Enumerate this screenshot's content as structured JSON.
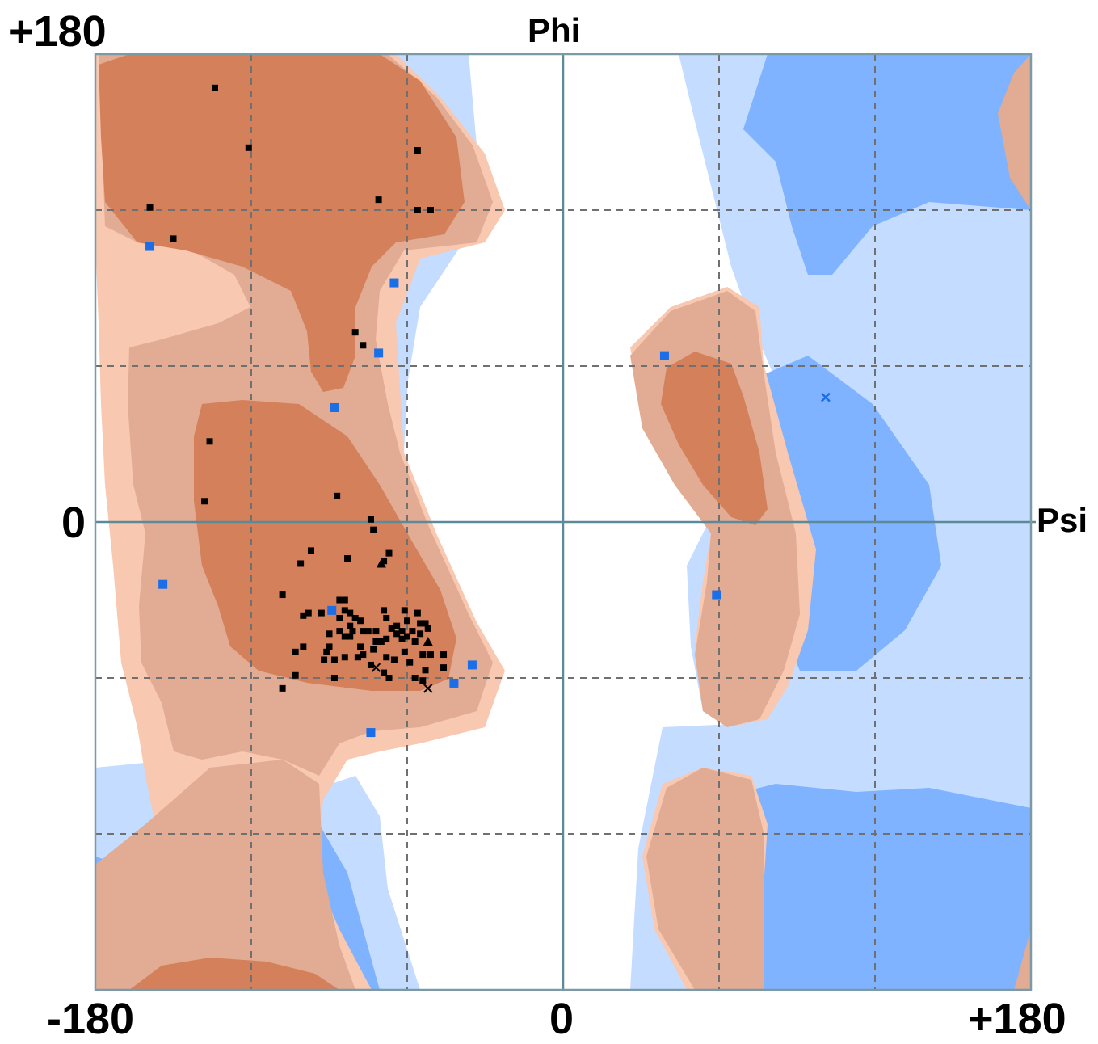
{
  "chart_data": {
    "type": "scatter",
    "title": "",
    "x_axis_name": "Phi",
    "y_axis_name": "Psi",
    "xlim": [
      -180,
      180
    ],
    "ylim": [
      -180,
      180
    ],
    "x_ticks": [
      -180,
      0,
      180
    ],
    "y_ticks": [
      -180,
      0,
      180
    ],
    "tick_labels": {
      "top_left": "+180",
      "left_mid": "0",
      "bottom_left": "-180",
      "bottom_mid": "0",
      "bottom_right": "+180"
    },
    "grid": true,
    "grid_step": 60,
    "colors": {
      "favoured_dark": "#d4805a",
      "allowed_mid": "#e2ab94",
      "allowed_light": "#f8c8b0",
      "glycine_dark": "#7fb2ff",
      "glycine_light": "#c4dcff",
      "marker_general": "#000000",
      "marker_glycine": "#1a6ee8"
    },
    "series": [
      {
        "marker": "square",
        "color": "#000000",
        "points": [
          [
            -134,
            167
          ],
          [
            -121,
            144
          ],
          [
            -56,
            143
          ],
          [
            -71,
            124
          ],
          [
            -51,
            120
          ],
          [
            -159,
            121
          ],
          [
            -150,
            109
          ],
          [
            -56,
            120
          ],
          [
            -80,
            73
          ],
          [
            -77,
            68
          ],
          [
            -136,
            31
          ],
          [
            -138,
            8
          ],
          [
            -87,
            10
          ],
          [
            -74,
            1
          ],
          [
            -73,
            -3
          ],
          [
            -67,
            -12
          ],
          [
            -69,
            -15
          ],
          [
            -83,
            -14
          ],
          [
            -97,
            -11
          ],
          [
            -101,
            -16
          ],
          [
            -108,
            -28
          ],
          [
            -93,
            -35
          ],
          [
            -86,
            -37
          ],
          [
            -84,
            -34
          ],
          [
            -82,
            -35
          ],
          [
            -80,
            -37
          ],
          [
            -78,
            -38
          ],
          [
            -82,
            -40
          ],
          [
            -81,
            -42
          ],
          [
            -77,
            -42
          ],
          [
            -75,
            -42
          ],
          [
            -72,
            -42
          ],
          [
            -69,
            -34
          ],
          [
            -68,
            -37
          ],
          [
            -61,
            -34
          ],
          [
            -56,
            -35
          ],
          [
            -60,
            -38
          ],
          [
            -64,
            -40
          ],
          [
            -66,
            -41
          ],
          [
            -62,
            -42
          ],
          [
            -58,
            -42
          ],
          [
            -55,
            -39
          ],
          [
            -53,
            -39
          ],
          [
            -52,
            -41
          ],
          [
            -55,
            -43
          ],
          [
            -60,
            -44
          ],
          [
            -64,
            -43
          ],
          [
            -62,
            -45
          ],
          [
            -57,
            -46
          ],
          [
            -86,
            -42
          ],
          [
            -84,
            -44
          ],
          [
            -82,
            -44
          ],
          [
            -90,
            -43
          ],
          [
            -100,
            -48
          ],
          [
            -98,
            -35
          ],
          [
            -86,
            -30
          ],
          [
            -84,
            -30
          ],
          [
            -78,
            -48
          ],
          [
            -72,
            -46
          ],
          [
            -70,
            -46
          ],
          [
            -68,
            -45
          ],
          [
            -73,
            -49
          ],
          [
            -88,
            -53
          ],
          [
            -91,
            -50
          ],
          [
            -84,
            -52
          ],
          [
            -79,
            -52
          ],
          [
            -77,
            -51
          ],
          [
            -74,
            -55
          ],
          [
            -69,
            -58
          ],
          [
            -68,
            -52
          ],
          [
            -65,
            -53
          ],
          [
            -61,
            -50
          ],
          [
            -59,
            -54
          ],
          [
            -54,
            -51
          ],
          [
            -51,
            -51
          ],
          [
            -46,
            -51
          ],
          [
            -46,
            -56
          ],
          [
            -53,
            -57
          ],
          [
            -67,
            -60
          ],
          [
            -88,
            -60
          ],
          [
            -92,
            -53
          ],
          [
            -90,
            -48
          ],
          [
            -103,
            -50
          ],
          [
            -103,
            -59
          ],
          [
            -108,
            -64
          ],
          [
            -54,
            -61
          ],
          [
            -57,
            -60
          ],
          [
            -100,
            -36
          ]
        ]
      },
      {
        "marker": "triangle",
        "color": "#000000",
        "points": [
          [
            -70,
            -16
          ],
          [
            -52,
            -46
          ]
        ]
      },
      {
        "marker": "cross",
        "color": "#000000",
        "points": [
          [
            -72,
            -56
          ],
          [
            -52,
            -64
          ]
        ]
      },
      {
        "marker": "square",
        "color": "#1a6ee8",
        "points": [
          [
            -159,
            106
          ],
          [
            -65,
            92
          ],
          [
            -71,
            65
          ],
          [
            -88,
            44
          ],
          [
            -154,
            -24
          ],
          [
            -89,
            -34
          ],
          [
            -35,
            -55
          ],
          [
            -42,
            -62
          ],
          [
            -74,
            -81
          ],
          [
            39,
            64
          ],
          [
            59,
            -28
          ]
        ]
      },
      {
        "marker": "cross",
        "color": "#1a6ee8",
        "points": [
          [
            101,
            48
          ]
        ]
      }
    ]
  }
}
